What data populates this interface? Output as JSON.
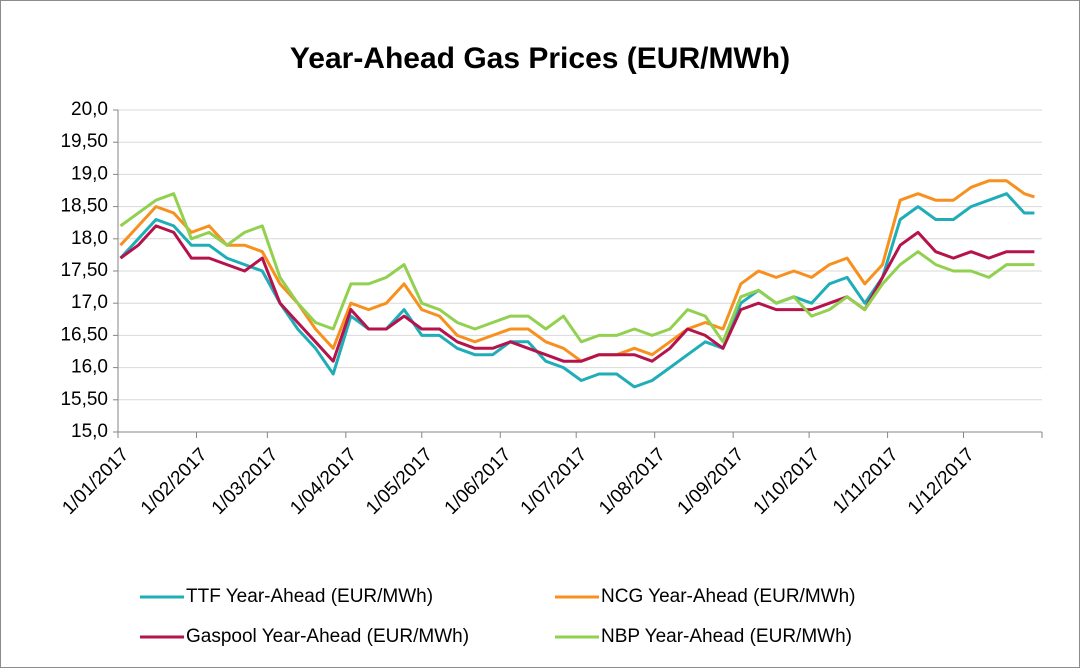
{
  "chart_data": {
    "type": "line",
    "title": "Year-Ahead Gas Prices (EUR/MWh)",
    "x": [
      "2017-01-02",
      "2017-01-09",
      "2017-01-16",
      "2017-01-23",
      "2017-01-30",
      "2017-02-06",
      "2017-02-13",
      "2017-02-20",
      "2017-02-27",
      "2017-03-06",
      "2017-03-13",
      "2017-03-20",
      "2017-03-27",
      "2017-04-03",
      "2017-04-10",
      "2017-04-17",
      "2017-04-24",
      "2017-05-01",
      "2017-05-08",
      "2017-05-15",
      "2017-05-22",
      "2017-05-29",
      "2017-06-05",
      "2017-06-12",
      "2017-06-19",
      "2017-06-26",
      "2017-07-03",
      "2017-07-10",
      "2017-07-17",
      "2017-07-24",
      "2017-07-31",
      "2017-08-07",
      "2017-08-14",
      "2017-08-21",
      "2017-08-28",
      "2017-09-04",
      "2017-09-11",
      "2017-09-18",
      "2017-09-25",
      "2017-10-02",
      "2017-10-09",
      "2017-10-16",
      "2017-10-23",
      "2017-10-30",
      "2017-11-06",
      "2017-11-13",
      "2017-11-20",
      "2017-11-27",
      "2017-12-04",
      "2017-12-11",
      "2017-12-18",
      "2017-12-25",
      "2017-12-29"
    ],
    "series": [
      {
        "name": "TTF Year-Ahead (EUR/MWh)",
        "color": "#1fadb8",
        "values": [
          17.7,
          18.0,
          18.3,
          18.2,
          17.9,
          17.9,
          17.7,
          17.6,
          17.5,
          17.0,
          16.6,
          16.3,
          15.9,
          16.8,
          16.6,
          16.6,
          16.9,
          16.5,
          16.5,
          16.3,
          16.2,
          16.2,
          16.4,
          16.4,
          16.1,
          16.0,
          15.8,
          15.9,
          15.9,
          15.7,
          15.8,
          16.0,
          16.2,
          16.4,
          16.3,
          17.0,
          17.2,
          17.0,
          17.1,
          17.0,
          17.3,
          17.4,
          17.0,
          17.4,
          18.3,
          18.5,
          18.3,
          18.3,
          18.5,
          18.6,
          18.7,
          18.4,
          18.4
        ]
      },
      {
        "name": "NCG Year-Ahead (EUR/MWh)",
        "color": "#f7901e",
        "values": [
          17.9,
          18.2,
          18.5,
          18.4,
          18.1,
          18.2,
          17.9,
          17.9,
          17.8,
          17.3,
          17.0,
          16.6,
          16.3,
          17.0,
          16.9,
          17.0,
          17.3,
          16.9,
          16.8,
          16.5,
          16.4,
          16.5,
          16.6,
          16.6,
          16.4,
          16.3,
          16.1,
          16.2,
          16.2,
          16.3,
          16.2,
          16.4,
          16.6,
          16.7,
          16.6,
          17.3,
          17.5,
          17.4,
          17.5,
          17.4,
          17.6,
          17.7,
          17.3,
          17.6,
          18.6,
          18.7,
          18.6,
          18.6,
          18.8,
          18.9,
          18.9,
          18.7,
          18.65
        ]
      },
      {
        "name": "Gaspool Year-Ahead (EUR/MWh)",
        "color": "#b5134b",
        "values": [
          17.7,
          17.9,
          18.2,
          18.1,
          17.7,
          17.7,
          17.6,
          17.5,
          17.7,
          17.0,
          16.7,
          16.4,
          16.1,
          16.9,
          16.6,
          16.6,
          16.8,
          16.6,
          16.6,
          16.4,
          16.3,
          16.3,
          16.4,
          16.3,
          16.2,
          16.1,
          16.1,
          16.2,
          16.2,
          16.2,
          16.1,
          16.3,
          16.6,
          16.5,
          16.3,
          16.9,
          17.0,
          16.9,
          16.9,
          16.9,
          17.0,
          17.1,
          16.9,
          17.4,
          17.9,
          18.1,
          17.8,
          17.7,
          17.8,
          17.7,
          17.8,
          17.8,
          17.8
        ]
      },
      {
        "name": "NBP Year-Ahead (EUR/MWh)",
        "color": "#92d050",
        "values": [
          18.2,
          18.4,
          18.6,
          18.7,
          18.0,
          18.1,
          17.9,
          18.1,
          18.2,
          17.4,
          17.0,
          16.7,
          16.6,
          17.3,
          17.3,
          17.4,
          17.6,
          17.0,
          16.9,
          16.7,
          16.6,
          16.7,
          16.8,
          16.8,
          16.6,
          16.8,
          16.4,
          16.5,
          16.5,
          16.6,
          16.5,
          16.6,
          16.9,
          16.8,
          16.4,
          17.1,
          17.2,
          17.0,
          17.1,
          16.8,
          16.9,
          17.1,
          16.9,
          17.3,
          17.6,
          17.8,
          17.6,
          17.5,
          17.5,
          17.4,
          17.6,
          17.6,
          17.6
        ]
      }
    ],
    "xlim": [
      "2017-01-01",
      "2018-01-01"
    ],
    "xticks": [
      {
        "value": "2017-01-01",
        "label": "1/01/2017"
      },
      {
        "value": "2017-02-01",
        "label": "1/02/2017"
      },
      {
        "value": "2017-03-01",
        "label": "1/03/2017"
      },
      {
        "value": "2017-04-01",
        "label": "1/04/2017"
      },
      {
        "value": "2017-05-01",
        "label": "1/05/2017"
      },
      {
        "value": "2017-06-01",
        "label": "1/06/2017"
      },
      {
        "value": "2017-07-01",
        "label": "1/07/2017"
      },
      {
        "value": "2017-08-01",
        "label": "1/08/2017"
      },
      {
        "value": "2017-09-01",
        "label": "1/09/2017"
      },
      {
        "value": "2017-10-01",
        "label": "1/10/2017"
      },
      {
        "value": "2017-11-01",
        "label": "1/11/2017"
      },
      {
        "value": "2017-12-01",
        "label": "1/12/2017"
      }
    ],
    "ylim": [
      15,
      20
    ],
    "yticks": [
      {
        "value": 15,
        "label": "15,0"
      },
      {
        "value": 15.5,
        "label": "15,50"
      },
      {
        "value": 16,
        "label": "16,0"
      },
      {
        "value": 16.5,
        "label": "16,50"
      },
      {
        "value": 17,
        "label": "17,0"
      },
      {
        "value": 17.5,
        "label": "17,50"
      },
      {
        "value": 18,
        "label": "18,0"
      },
      {
        "value": 18.5,
        "label": "18,50"
      },
      {
        "value": 19,
        "label": "19,0"
      },
      {
        "value": 19.5,
        "label": "19,50"
      },
      {
        "value": 20,
        "label": "20,0"
      }
    ],
    "grid": true,
    "legend": "bottom"
  }
}
